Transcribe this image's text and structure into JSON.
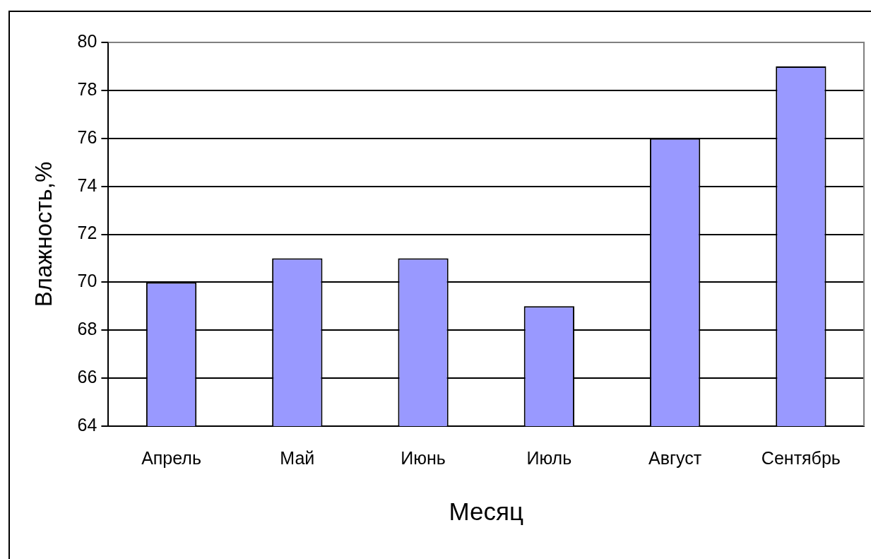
{
  "chart_data": {
    "type": "bar",
    "xlabel": "Месяц",
    "ylabel": "Влажность,%",
    "categories": [
      "Апрель",
      "Май",
      "Июнь",
      "Июль",
      "Август",
      "Сентябрь"
    ],
    "values": [
      70,
      71,
      71,
      69,
      76,
      79
    ],
    "color": "#9999ff",
    "ylim": [
      64,
      80
    ],
    "yticks": [
      64,
      66,
      68,
      70,
      72,
      74,
      76,
      78,
      80
    ],
    "grid": "y",
    "legend": false
  }
}
